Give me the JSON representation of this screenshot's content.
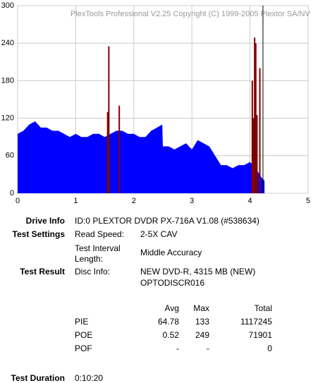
{
  "chart_data": {
    "type": "area",
    "title": "PlexTools Professional V2.25 Copyright (C) 1999-2005 Plextor SA/NV",
    "xlim": [
      0,
      5
    ],
    "xticks": [
      0,
      1,
      2,
      3,
      4,
      5
    ],
    "ylim": [
      0,
      300
    ],
    "yticks": [
      0,
      60,
      120,
      180,
      240,
      300
    ],
    "grid": true,
    "series": [
      {
        "color": "#0000ff",
        "x": [
          0,
          0.1,
          0.2,
          0.3,
          0.4,
          0.5,
          0.6,
          0.7,
          0.8,
          0.9,
          1.0,
          1.1,
          1.2,
          1.3,
          1.4,
          1.5,
          1.6,
          1.7,
          1.8,
          1.9,
          2.0,
          2.1,
          2.2,
          2.3,
          2.4,
          2.49,
          2.5,
          2.6,
          2.7,
          2.8,
          2.9,
          3.0,
          3.1,
          3.2,
          3.3,
          3.4,
          3.5,
          3.6,
          3.7,
          3.8,
          3.9,
          4.0,
          4.1,
          4.2,
          4.25
        ],
        "values": [
          95,
          100,
          110,
          115,
          105,
          105,
          100,
          100,
          95,
          90,
          95,
          90,
          90,
          95,
          95,
          90,
          95,
          100,
          100,
          95,
          95,
          90,
          90,
          100,
          105,
          110,
          75,
          75,
          70,
          75,
          80,
          70,
          85,
          80,
          75,
          60,
          45,
          45,
          40,
          45,
          45,
          50,
          40,
          25,
          20
        ]
      },
      {
        "type": "spike",
        "color": "#800000",
        "x": [
          1.55,
          1.57,
          1.75,
          4.04,
          4.06,
          4.08,
          4.1,
          4.12,
          4.17
        ],
        "values": [
          130,
          235,
          140,
          180,
          120,
          249,
          240,
          125,
          200
        ]
      }
    ]
  },
  "drive_info": {
    "label": "Drive Info",
    "value": "ID:0 PLEXTOR DVDR PX-716A V1.08 (#538634)"
  },
  "test_settings": {
    "label": "Test Settings",
    "read_speed_label": "Read Speed:",
    "read_speed": "2-5X CAV",
    "interval_label": [
      "Test Interval",
      "Length:"
    ],
    "interval": "Middle Accuracy"
  },
  "test_result": {
    "label": "Test Result",
    "disc_info_label": "Disc Info:",
    "disc_info": [
      "NEW DVD-R, 4315 MB (NEW)",
      "OPTODISCR016"
    ],
    "table": {
      "columns": [
        "Avg",
        "Max",
        "Total"
      ],
      "rows": [
        [
          "PIE",
          64.78,
          133,
          1117245
        ],
        [
          "POE",
          0.52,
          249,
          71901
        ],
        [
          "POF",
          "-",
          "-",
          0
        ]
      ]
    }
  },
  "test_duration": {
    "label": "Test Duration",
    "value": "0:10:20"
  }
}
